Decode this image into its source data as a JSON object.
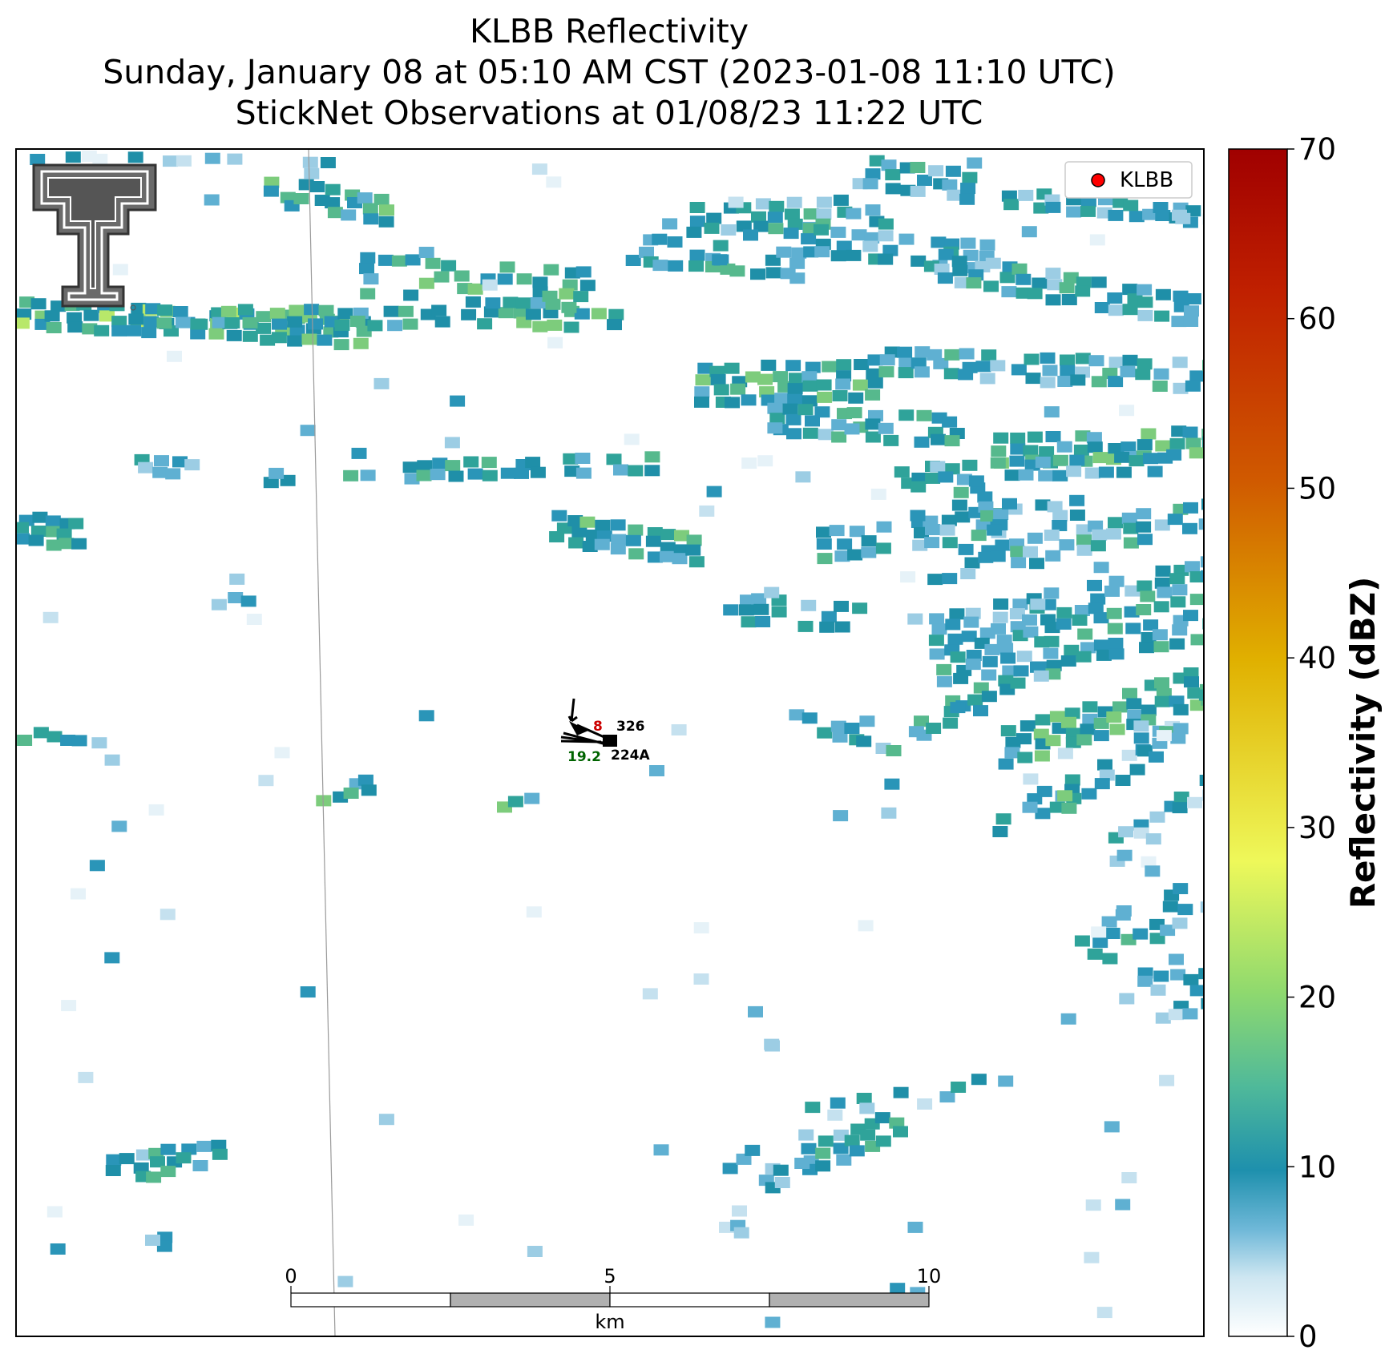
{
  "title": {
    "line1": "KLBB Reflectivity",
    "line2": "Sunday, January 08 at 05:10 AM CST (2023-01-08 11:10 UTC)",
    "line3": "StickNet Observations at 01/08/23 11:22 UTC"
  },
  "legend": {
    "label": "KLBB",
    "marker_color": "#ff0000"
  },
  "colorbar": {
    "label": "Reflectivity (dBZ)",
    "ticks": [
      "0",
      "10",
      "20",
      "30",
      "40",
      "50",
      "60",
      "70"
    ],
    "range": [
      0,
      70
    ],
    "colors": [
      "#ffffff",
      "#6fb8d8",
      "#1e90ad",
      "#6ccb8a",
      "#eef85a",
      "#e0b000",
      "#d05a00",
      "#a00000"
    ]
  },
  "scalebar": {
    "ticks": [
      "0",
      "5",
      "10"
    ],
    "unit": "km"
  },
  "stations": [
    {
      "id": "326",
      "temp": "8",
      "temp_color": "#cc0000"
    },
    {
      "id": "224A",
      "dewpoint": "19.2",
      "dew_color": "#006400"
    }
  ],
  "logo": {
    "name": "Texas Tech Double T"
  }
}
